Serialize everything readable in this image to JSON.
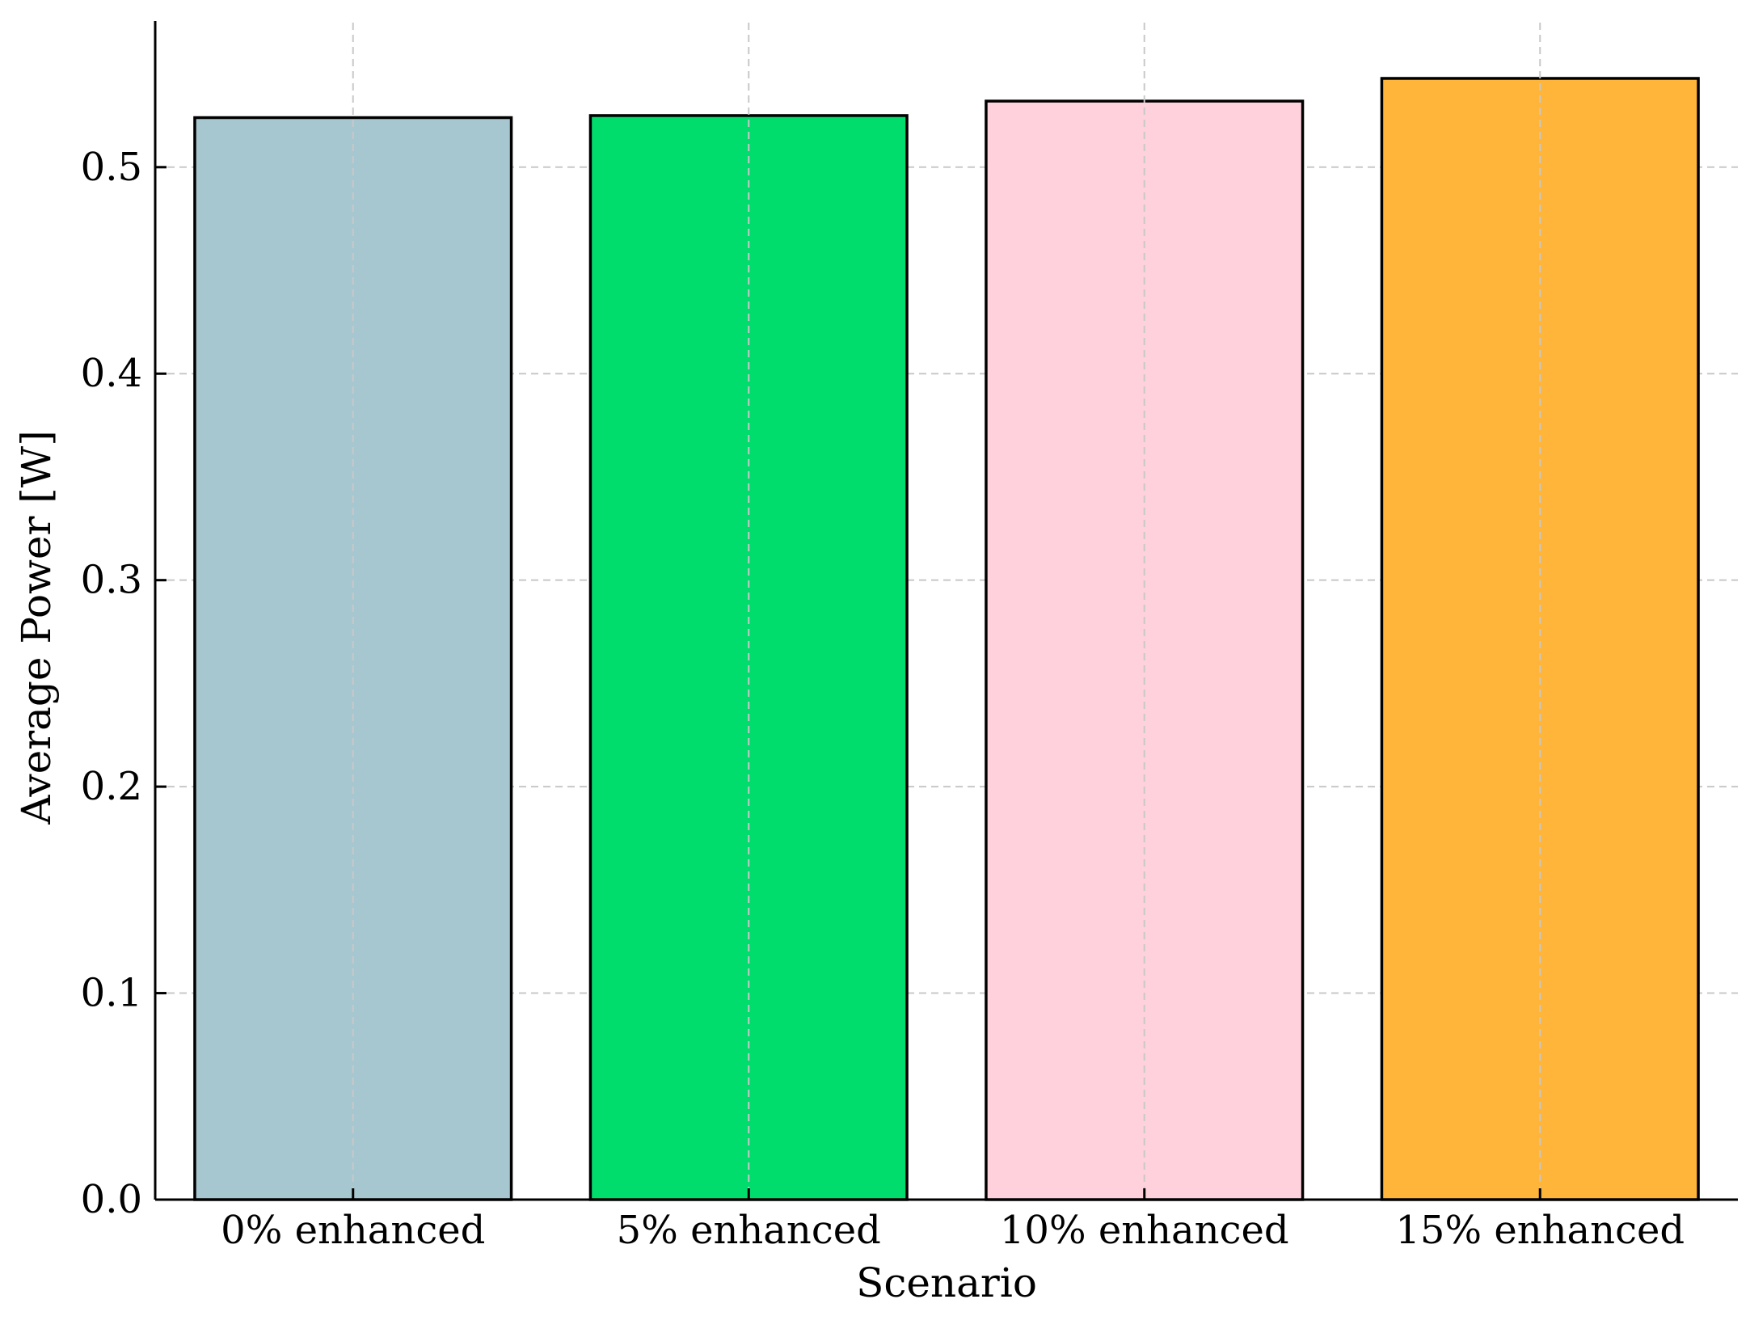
{
  "chart_data": {
    "type": "bar",
    "categories": [
      "0% enhanced",
      "5% enhanced",
      "10% enhanced",
      "15% enhanced"
    ],
    "values": [
      0.524,
      0.525,
      0.532,
      0.543
    ],
    "colors": [
      "#a7c7d0",
      "#00dd6c",
      "#ffd1dc",
      "#ffb43a"
    ],
    "xlabel": "Scenario",
    "ylabel": "Average Power [W]",
    "ylim": [
      0,
      0.57
    ],
    "yticks": [
      "0.0",
      "0.1",
      "0.2",
      "0.3",
      "0.4",
      "0.5"
    ],
    "grid": true,
    "grid_style": "dashed"
  }
}
